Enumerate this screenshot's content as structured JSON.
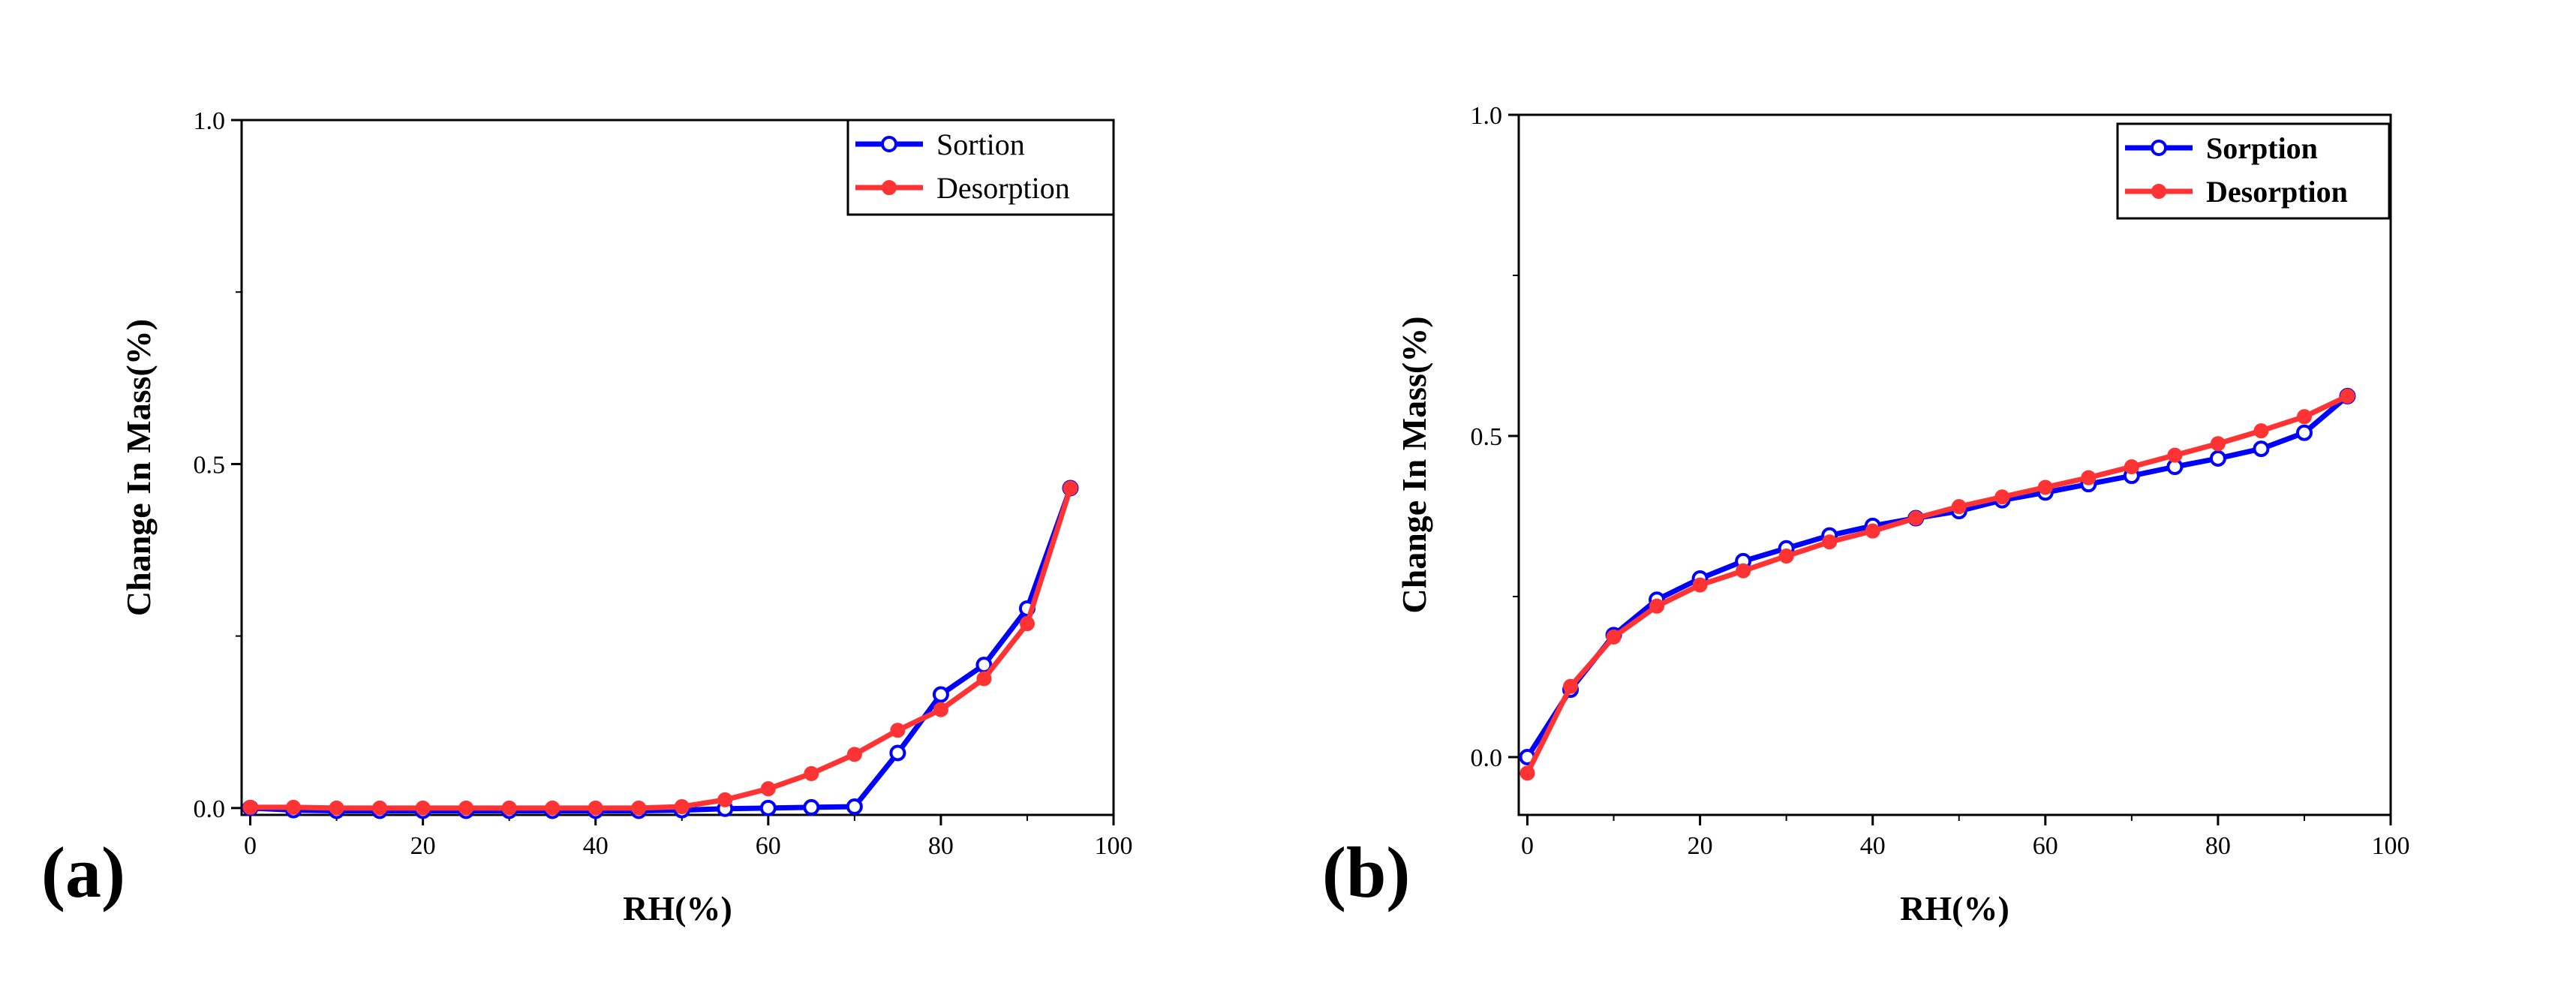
{
  "chart_data": [
    {
      "panel": "(a)",
      "type": "line",
      "xlabel": "RH(%)",
      "ylabel": "Change In Mass(%)",
      "xlim": [
        -1,
        100
      ],
      "ylim": [
        -0.01,
        1.0
      ],
      "xticks": [
        "0",
        "20",
        "40",
        "60",
        "80",
        "100"
      ],
      "yticks": [
        "0.0",
        "0.5",
        "1.0"
      ],
      "legend_position": "top-right",
      "x": [
        0,
        5,
        10,
        15,
        20,
        25,
        30,
        35,
        40,
        45,
        50,
        55,
        60,
        65,
        70,
        75,
        80,
        85,
        90,
        95
      ],
      "series": [
        {
          "name": "Sortion",
          "color": "#0000ff",
          "marker": "open-circle",
          "values": [
            0,
            -0.003,
            -0.004,
            -0.004,
            -0.004,
            -0.004,
            -0.004,
            -0.004,
            -0.004,
            -0.004,
            -0.003,
            -0.001,
            0.0,
            0.001,
            0.002,
            0.08,
            0.165,
            0.208,
            0.29,
            0.465
          ]
        },
        {
          "name": "Desorption",
          "color": "#ff3333",
          "marker": "filled-circle",
          "values": [
            0.001,
            0.001,
            0.0,
            0.0,
            0.0,
            0.0,
            0.0,
            0.0,
            0.0,
            0.0,
            0.002,
            0.012,
            0.028,
            0.05,
            0.078,
            0.113,
            0.143,
            0.188,
            0.268,
            0.465
          ]
        }
      ]
    },
    {
      "panel": "(b)",
      "type": "line",
      "xlabel": "RH(%)",
      "ylabel": "Change In Mass(%)",
      "xlim": [
        -1,
        100
      ],
      "ylim": [
        -0.09,
        1.0
      ],
      "xticks": [
        "0",
        "20",
        "40",
        "60",
        "80",
        "100"
      ],
      "yticks": [
        "0.0",
        "0.5",
        "1.0"
      ],
      "legend_position": "top-right",
      "x": [
        0,
        5,
        10,
        15,
        20,
        25,
        30,
        35,
        40,
        45,
        50,
        55,
        60,
        65,
        70,
        75,
        80,
        85,
        90,
        95
      ],
      "series": [
        {
          "name": "Sorption",
          "color": "#0000ff",
          "marker": "open-circle",
          "values": [
            0.0,
            0.105,
            0.19,
            0.245,
            0.278,
            0.305,
            0.325,
            0.345,
            0.36,
            0.372,
            0.383,
            0.4,
            0.412,
            0.425,
            0.438,
            0.452,
            0.465,
            0.48,
            0.505,
            0.562
          ]
        },
        {
          "name": "Desorption",
          "color": "#ff3333",
          "marker": "filled-circle",
          "values": [
            -0.025,
            0.11,
            0.187,
            0.235,
            0.268,
            0.29,
            0.313,
            0.335,
            0.352,
            0.372,
            0.39,
            0.405,
            0.42,
            0.435,
            0.452,
            0.47,
            0.488,
            0.508,
            0.53,
            0.562
          ]
        }
      ]
    }
  ]
}
